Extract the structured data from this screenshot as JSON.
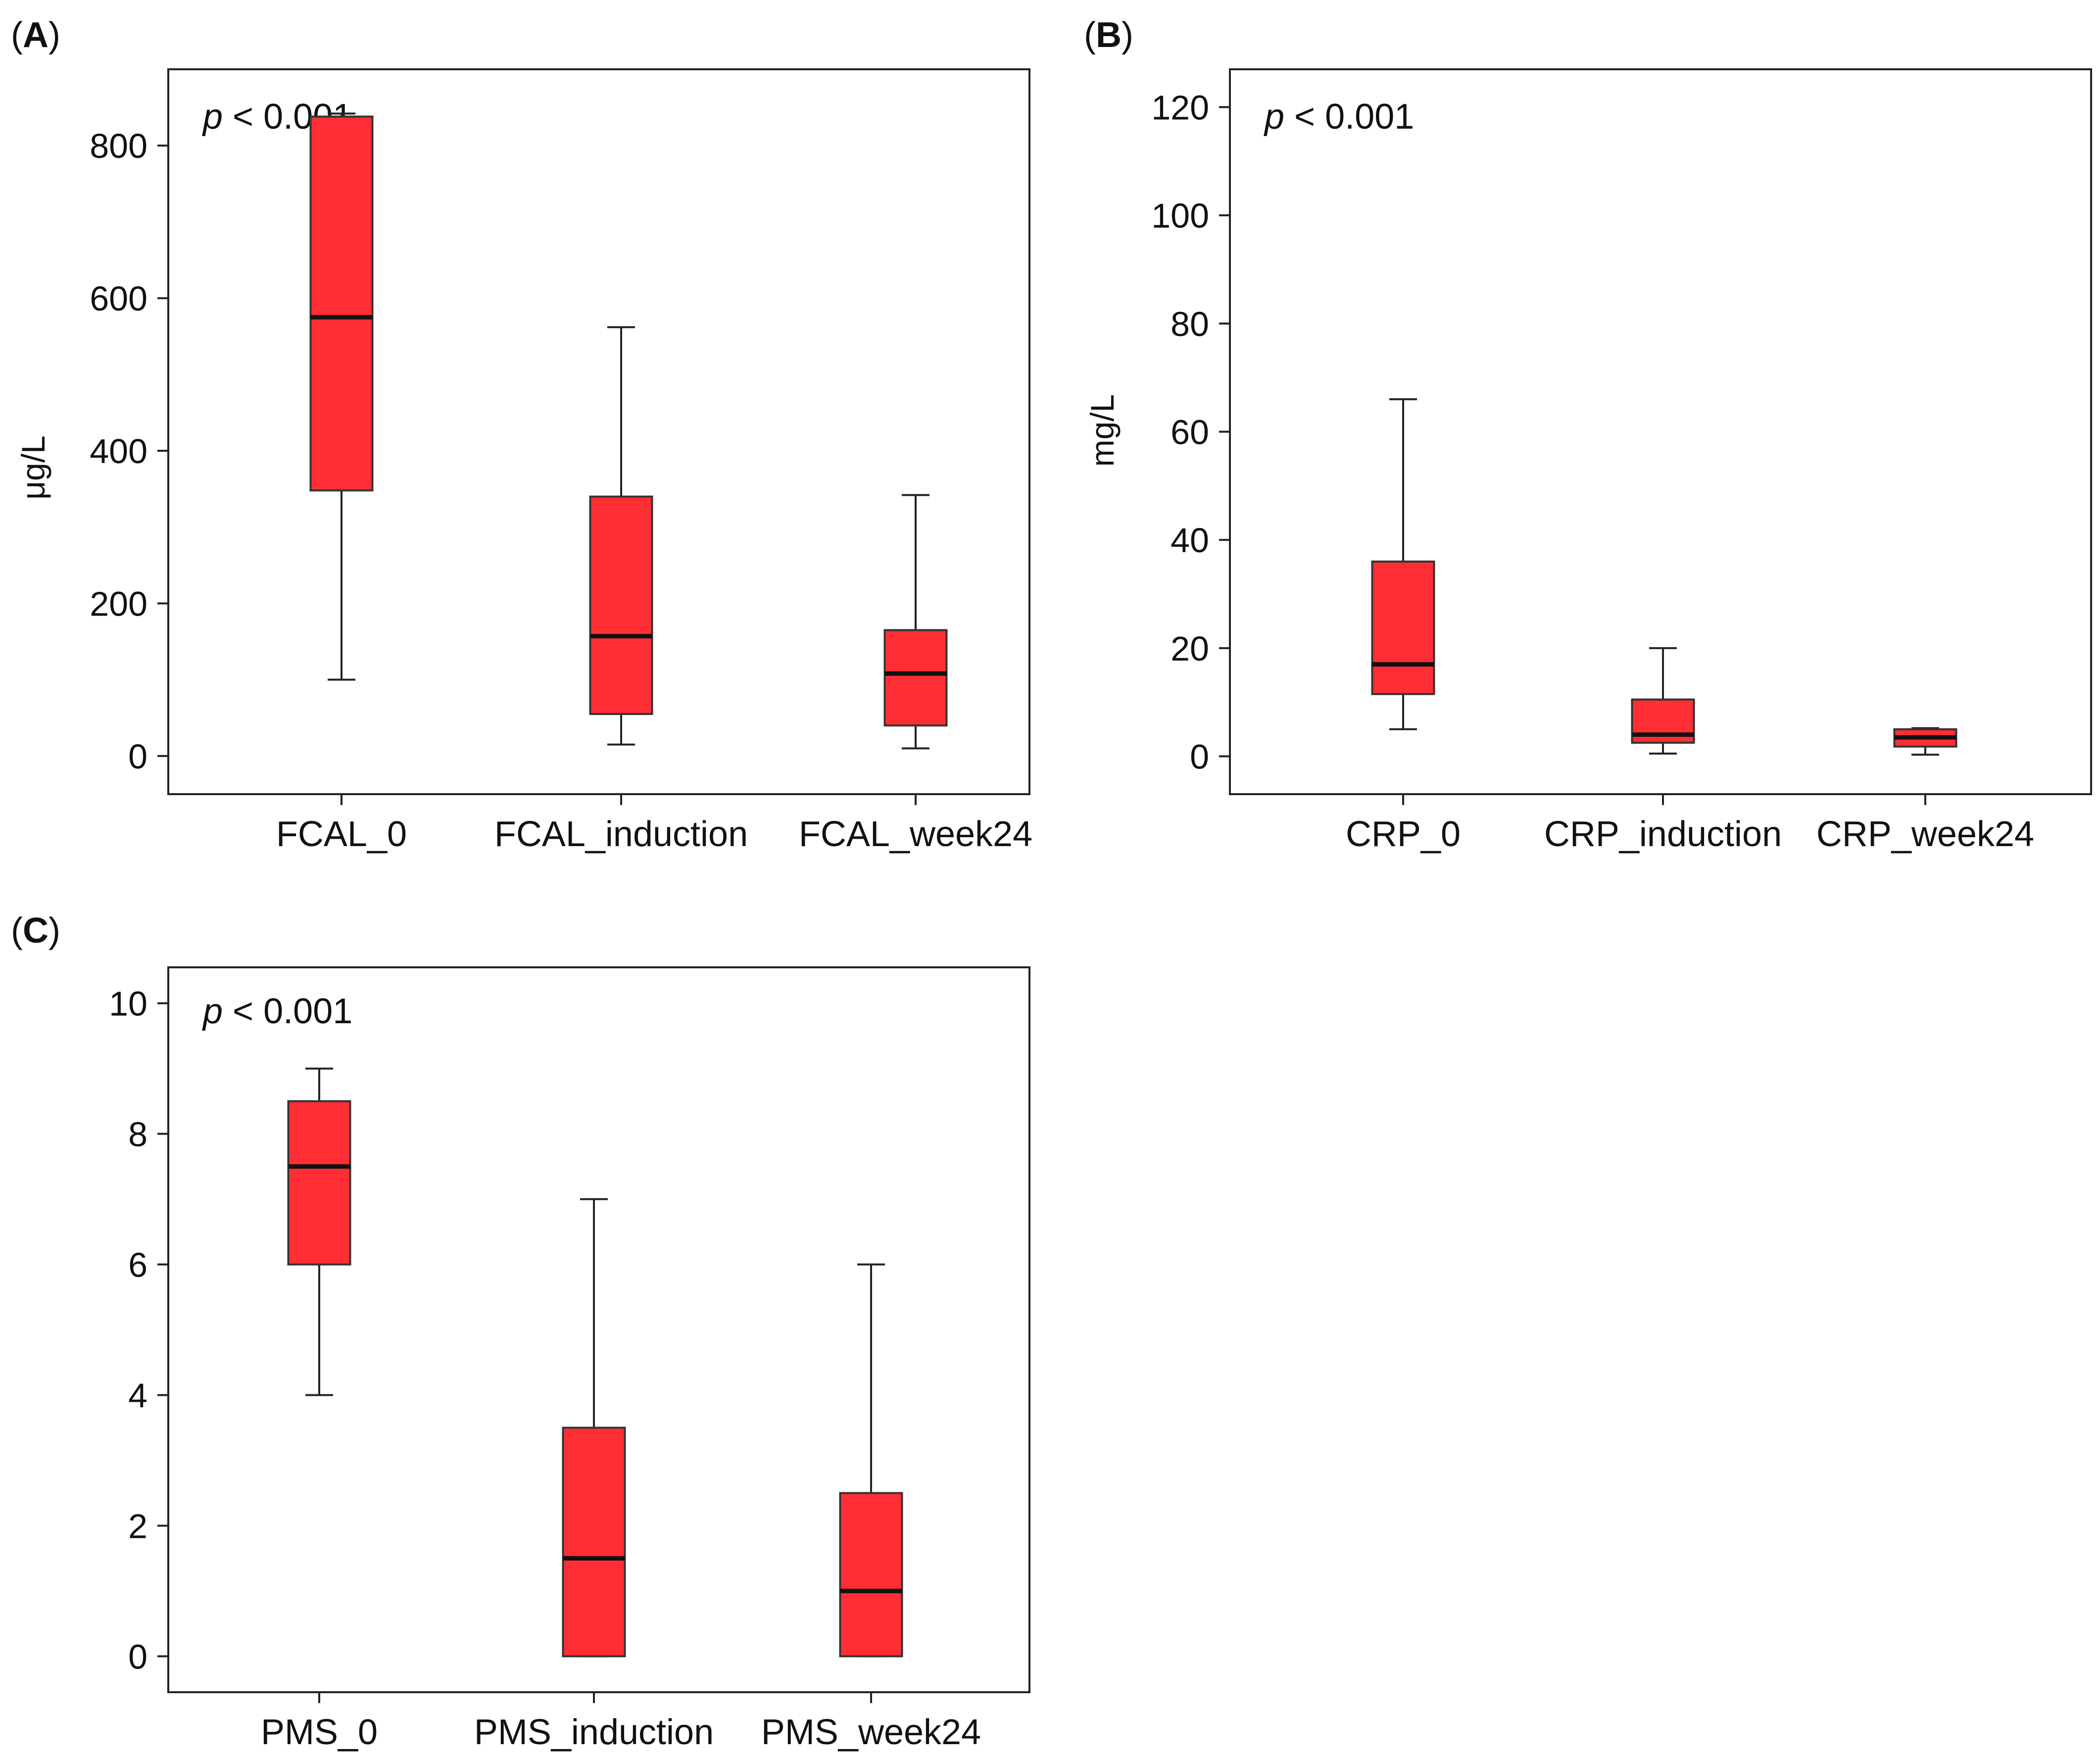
{
  "colors": {
    "box_fill": "#ff2e35",
    "axis": "#222222"
  },
  "chart_data": [
    {
      "type": "box",
      "panel": "(A)",
      "panel_letter": "A",
      "annotation_italic": "p",
      "annotation_rest": " < 0.001",
      "ylabel": "μg/L",
      "xlabel": "",
      "ylim": [
        -50,
        900
      ],
      "yticks": [
        0,
        200,
        400,
        600,
        800
      ],
      "categories": [
        "FCAL_0",
        "FCAL_induction",
        "FCAL_week24"
      ],
      "boxes": [
        {
          "label": "FCAL_0",
          "whisker_low": 100,
          "q1": 348,
          "median": 575,
          "q3": 838,
          "whisker_high": 842
        },
        {
          "label": "FCAL_induction",
          "whisker_low": 15,
          "q1": 55,
          "median": 157,
          "q3": 340,
          "whisker_high": 562
        },
        {
          "label": "FCAL_week24",
          "whisker_low": 10,
          "q1": 40,
          "median": 108,
          "q3": 165,
          "whisker_high": 342
        }
      ]
    },
    {
      "type": "box",
      "panel": "(B)",
      "panel_letter": "B",
      "annotation_italic": "p",
      "annotation_rest": " < 0.001",
      "ylabel": "mg/L",
      "xlabel": "",
      "ylim": [
        -7,
        127
      ],
      "yticks": [
        0,
        20,
        40,
        60,
        80,
        100,
        120
      ],
      "categories": [
        "CRP_0",
        "CRP_induction",
        "CRP_week24"
      ],
      "boxes": [
        {
          "label": "CRP_0",
          "whisker_low": 5,
          "q1": 11.5,
          "median": 17,
          "q3": 36,
          "whisker_high": 66
        },
        {
          "label": "CRP_induction",
          "whisker_low": 0.5,
          "q1": 2.5,
          "median": 4,
          "q3": 10.5,
          "whisker_high": 20
        },
        {
          "label": "CRP_week24",
          "whisker_low": 0.3,
          "q1": 1.8,
          "median": 3.5,
          "q3": 5,
          "whisker_high": 5.2
        }
      ]
    },
    {
      "type": "box",
      "panel": "(C)",
      "panel_letter": "C",
      "annotation_italic": "p",
      "annotation_rest": " < 0.001",
      "ylabel": "",
      "xlabel": "",
      "ylim": [
        -0.55,
        10.55
      ],
      "yticks": [
        0,
        2,
        4,
        6,
        8,
        10
      ],
      "categories": [
        "PMS_0",
        "PMS_induction",
        "PMS_week24"
      ],
      "boxes": [
        {
          "label": "PMS_0",
          "whisker_low": 4,
          "q1": 6,
          "median": 7.5,
          "q3": 8.5,
          "whisker_high": 9
        },
        {
          "label": "PMS_induction",
          "whisker_low": 0,
          "q1": 0,
          "median": 1.5,
          "q3": 3.5,
          "whisker_high": 7
        },
        {
          "label": "PMS_week24",
          "whisker_low": 0,
          "q1": 0,
          "median": 1,
          "q3": 2.5,
          "whisker_high": 6
        }
      ]
    }
  ]
}
